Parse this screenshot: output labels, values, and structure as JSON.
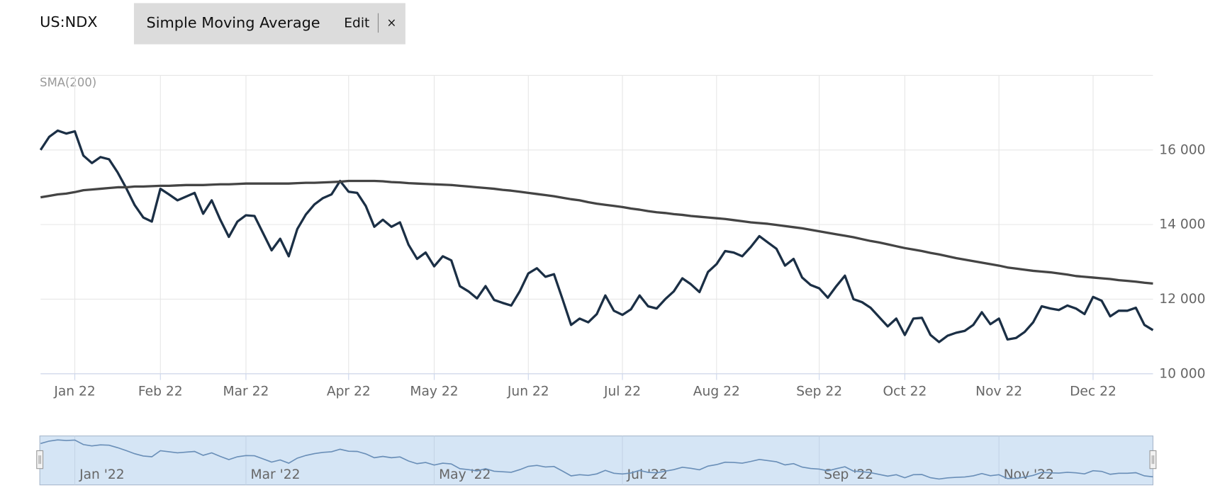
{
  "toolbar": {
    "indicator": "Simple Moving Average",
    "edit": "Edit",
    "close": "×"
  },
  "chart_data": {
    "type": "line",
    "categories": [
      null,
      null,
      null,
      null,
      "Jan 22",
      null,
      null,
      null,
      null,
      null,
      null,
      null,
      null,
      null,
      "Feb 22",
      null,
      null,
      null,
      null,
      null,
      null,
      null,
      null,
      null,
      "Mar 22",
      null,
      null,
      null,
      null,
      null,
      null,
      null,
      null,
      null,
      null,
      null,
      "Apr 22",
      null,
      null,
      null,
      null,
      null,
      null,
      null,
      null,
      null,
      "May 22",
      null,
      null,
      null,
      null,
      null,
      null,
      null,
      null,
      null,
      null,
      "Jun 22",
      null,
      null,
      null,
      null,
      null,
      null,
      null,
      null,
      null,
      null,
      "Jul 22",
      null,
      null,
      null,
      null,
      null,
      null,
      null,
      null,
      null,
      null,
      "Aug 22",
      null,
      null,
      null,
      null,
      null,
      null,
      null,
      null,
      null,
      null,
      null,
      "Sep 22",
      null,
      null,
      null,
      null,
      null,
      null,
      null,
      null,
      null,
      "Oct 22",
      null,
      null,
      null,
      null,
      null,
      null,
      null,
      null,
      null,
      null,
      "Nov 22",
      null,
      null,
      null,
      null,
      null,
      null,
      null,
      null,
      null,
      null,
      "Dec 22",
      null,
      null,
      null,
      null,
      null,
      null,
      null
    ],
    "series": [
      {
        "name": "US:NDX",
        "color": "#1b2f45",
        "values": [
          16000,
          16350,
          16520,
          16440,
          16500,
          15850,
          15650,
          15810,
          15750,
          15400,
          14980,
          14520,
          14190,
          14080,
          14960,
          14810,
          14650,
          14750,
          14850,
          14290,
          14650,
          14130,
          13670,
          14080,
          14250,
          14230,
          13770,
          13310,
          13620,
          13150,
          13880,
          14270,
          14540,
          14710,
          14810,
          15170,
          14880,
          14850,
          14500,
          13940,
          14130,
          13940,
          14060,
          13460,
          13080,
          13250,
          12880,
          13150,
          13040,
          12350,
          12210,
          12020,
          12350,
          11980,
          11900,
          11830,
          12210,
          12690,
          12830,
          12600,
          12670,
          12000,
          11310,
          11480,
          11380,
          11600,
          12100,
          11690,
          11580,
          11730,
          12100,
          11810,
          11750,
          12000,
          12210,
          12560,
          12400,
          12190,
          12730,
          12940,
          13290,
          13250,
          13150,
          13400,
          13690,
          13520,
          13350,
          12900,
          13080,
          12580,
          12380,
          12290,
          12040,
          12350,
          12630,
          12000,
          11920,
          11770,
          11520,
          11270,
          11480,
          11040,
          11480,
          11500,
          11040,
          10850,
          11020,
          11100,
          11150,
          11310,
          11650,
          11330,
          11480,
          10920,
          10960,
          11120,
          11380,
          11810,
          11750,
          11710,
          11830,
          11750,
          11600,
          12060,
          11960,
          11540,
          11690,
          11690,
          11770,
          11310,
          11170
        ]
      },
      {
        "name": "SMA(200)",
        "color": "#444444",
        "values": [
          14730,
          14770,
          14810,
          14830,
          14870,
          14920,
          14940,
          14960,
          14980,
          15000,
          15000,
          15020,
          15020,
          15030,
          15040,
          15040,
          15050,
          15060,
          15060,
          15060,
          15070,
          15080,
          15080,
          15090,
          15100,
          15100,
          15100,
          15100,
          15100,
          15100,
          15110,
          15120,
          15120,
          15130,
          15140,
          15150,
          15170,
          15170,
          15170,
          15170,
          15160,
          15140,
          15130,
          15110,
          15100,
          15090,
          15080,
          15070,
          15060,
          15040,
          15020,
          15000,
          14980,
          14960,
          14930,
          14910,
          14880,
          14850,
          14820,
          14790,
          14760,
          14720,
          14680,
          14650,
          14600,
          14560,
          14530,
          14500,
          14470,
          14430,
          14400,
          14360,
          14330,
          14310,
          14280,
          14260,
          14230,
          14210,
          14190,
          14170,
          14150,
          14120,
          14090,
          14060,
          14040,
          14020,
          13990,
          13960,
          13930,
          13900,
          13860,
          13820,
          13780,
          13740,
          13700,
          13660,
          13610,
          13560,
          13520,
          13470,
          13420,
          13370,
          13330,
          13290,
          13240,
          13200,
          13150,
          13100,
          13060,
          13020,
          12980,
          12940,
          12900,
          12850,
          12820,
          12790,
          12760,
          12740,
          12720,
          12690,
          12660,
          12620,
          12600,
          12580,
          12560,
          12540,
          12510,
          12490,
          12470,
          12440,
          12420
        ]
      }
    ],
    "ylim": [
      10000,
      18000
    ],
    "yticks": [
      {
        "value": 10000,
        "label": "10 000"
      },
      {
        "value": 12000,
        "label": "12 000"
      },
      {
        "value": 14000,
        "label": "14 000"
      },
      {
        "value": 16000,
        "label": "16 000"
      }
    ],
    "grid": true,
    "navigator": {
      "color": "#6a8fb8",
      "fill": "#d5e5f5",
      "categories": [
        null,
        null,
        null,
        null,
        "Jan '22",
        null,
        null,
        null,
        null,
        null,
        null,
        null,
        null,
        null,
        null,
        null,
        null,
        null,
        null,
        null,
        null,
        null,
        null,
        null,
        "Mar '22",
        null,
        null,
        null,
        null,
        null,
        null,
        null,
        null,
        null,
        null,
        null,
        null,
        null,
        null,
        null,
        null,
        null,
        null,
        null,
        null,
        null,
        "May '22",
        null,
        null,
        null,
        null,
        null,
        null,
        null,
        null,
        null,
        null,
        null,
        null,
        null,
        null,
        null,
        null,
        null,
        null,
        null,
        null,
        null,
        "Jul '22",
        null,
        null,
        null,
        null,
        null,
        null,
        null,
        null,
        null,
        null,
        null,
        null,
        null,
        null,
        null,
        null,
        null,
        null,
        null,
        null,
        null,
        null,
        "Sep '22",
        null,
        null,
        null,
        null,
        null,
        null,
        null,
        null,
        null,
        null,
        null,
        null,
        null,
        null,
        null,
        null,
        null,
        null,
        null,
        null,
        "Nov '22",
        null,
        null,
        null,
        null,
        null,
        null,
        null,
        null,
        null,
        null,
        null,
        null,
        null,
        null,
        null,
        null,
        null,
        null
      ]
    }
  }
}
